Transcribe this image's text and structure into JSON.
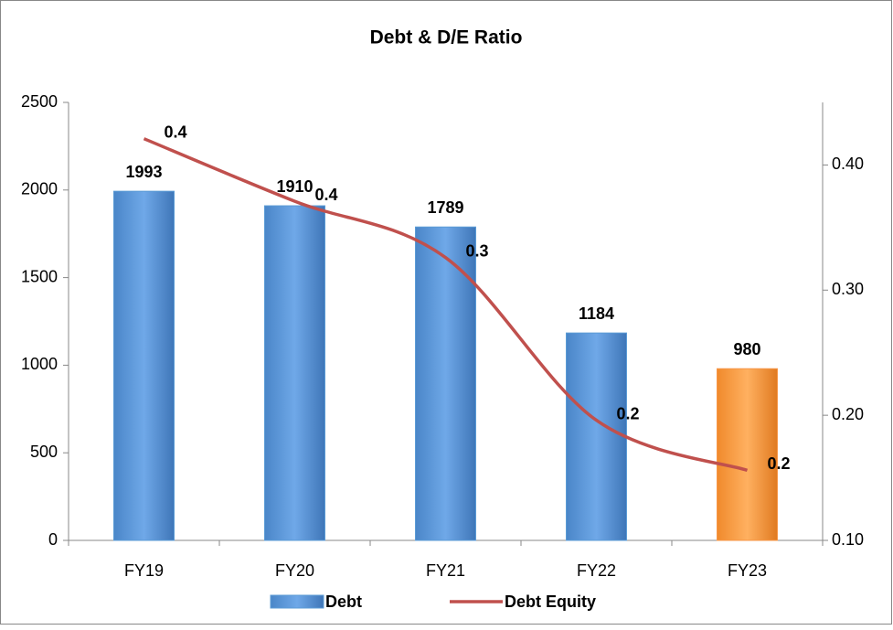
{
  "chart_data": {
    "type": "bar_line",
    "title": "Debt & D/E Ratio",
    "categories": [
      "FY19",
      "FY20",
      "FY21",
      "FY22",
      "FY23"
    ],
    "series": [
      {
        "name": "Debt",
        "type": "bar",
        "color": "#5b9bd5",
        "colors": [
          "#5b9bd5",
          "#5b9bd5",
          "#5b9bd5",
          "#5b9bd5",
          "#f79646"
        ],
        "values": [
          1993,
          1910,
          1789,
          1184,
          980
        ]
      },
      {
        "name": "Debt Equity",
        "type": "line",
        "axis": "y2",
        "color": "#c0504d",
        "values": [
          0.421,
          0.371,
          0.326,
          0.196,
          0.156
        ],
        "value_labels": [
          "0.4",
          "0.4",
          "0.3",
          "0.2",
          "0.2"
        ]
      }
    ],
    "ylim": [
      0,
      2500
    ],
    "yticks": [
      0,
      500,
      1000,
      1500,
      2000,
      2500
    ],
    "y2lim": [
      0.1,
      0.45
    ],
    "y2ticks": [
      {
        "value": 0.1,
        "label": "0.10"
      },
      {
        "value": 0.2,
        "label": "0.20"
      },
      {
        "value": 0.3,
        "label": "0.30"
      },
      {
        "value": 0.4,
        "label": "0.40"
      }
    ],
    "legend": "bottom"
  }
}
